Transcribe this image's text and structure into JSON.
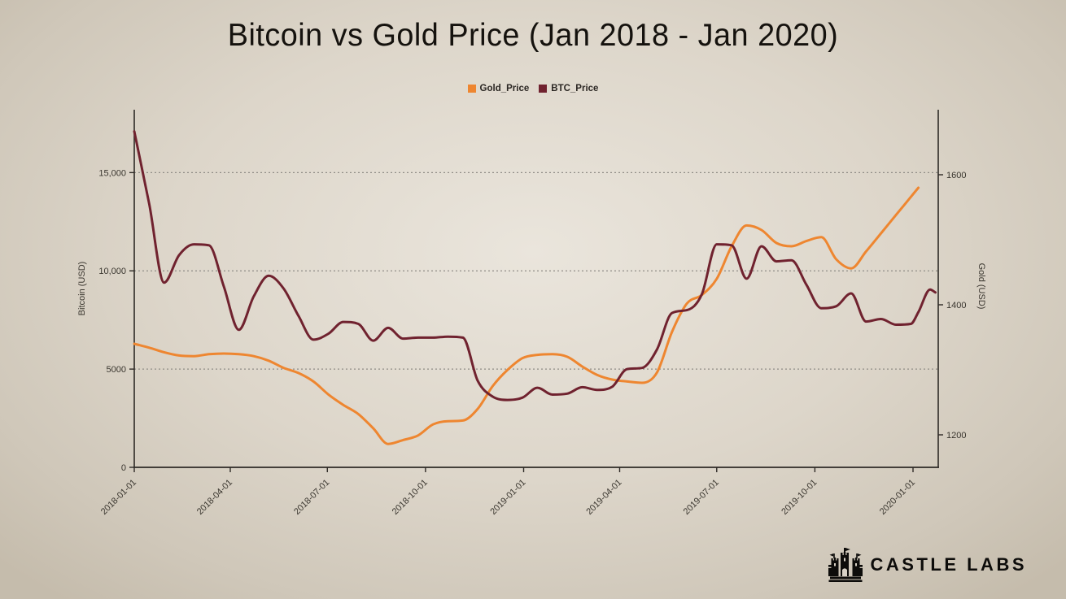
{
  "title": "Bitcoin vs Gold Price (Jan 2018 - Jan 2020)",
  "legend": {
    "items": [
      {
        "label": "Gold_Price",
        "color": "#ee8630"
      },
      {
        "label": "BTC_Price",
        "color": "#70222f"
      }
    ]
  },
  "watermark": {
    "text": "CASTLE LABS"
  },
  "chart_data": {
    "type": "line",
    "title": "Bitcoin vs Gold Price (Jan 2018 - Jan 2020)",
    "x_domain": [
      "2018-01-01",
      "2020-01-01"
    ],
    "x_tick_labels": [
      "2018-01-01",
      "2018-04-01",
      "2018-07-01",
      "2018-10-01",
      "2019-01-01",
      "2019-04-01",
      "2019-07-01",
      "2019-10-01",
      "2020-01-01"
    ],
    "left_axis": {
      "label": "Bitcoin (USD)",
      "range": [
        0,
        18200
      ],
      "ticks": [
        {
          "value": 0,
          "label": "0"
        },
        {
          "value": 5000,
          "label": "5000"
        },
        {
          "value": 10000,
          "label": "10,000"
        },
        {
          "value": 15000,
          "label": "15,000"
        }
      ],
      "gridlines_at": [
        5000,
        10000,
        15000
      ]
    },
    "right_axis": {
      "label": "Gold (USD)",
      "range": [
        1150,
        1700
      ],
      "ticks": [
        {
          "value": 1200,
          "label": "1200"
        },
        {
          "value": 1400,
          "label": "1400"
        },
        {
          "value": 1600,
          "label": "1600"
        }
      ]
    },
    "grid": {
      "style": "dashed",
      "color": "#8f8c86"
    },
    "dates": [
      "2018-01-01",
      "2018-01-15",
      "2018-01-29",
      "2018-02-12",
      "2018-02-26",
      "2018-03-12",
      "2018-03-26",
      "2018-04-09",
      "2018-04-23",
      "2018-05-07",
      "2018-05-21",
      "2018-06-04",
      "2018-06-18",
      "2018-07-02",
      "2018-07-16",
      "2018-07-30",
      "2018-08-13",
      "2018-08-27",
      "2018-09-10",
      "2018-09-24",
      "2018-10-08",
      "2018-10-22",
      "2018-11-05",
      "2018-11-19",
      "2018-12-03",
      "2018-12-17",
      "2018-12-31",
      "2019-01-14",
      "2019-01-28",
      "2019-02-11",
      "2019-02-25",
      "2019-03-11",
      "2019-03-25",
      "2019-04-08",
      "2019-04-22",
      "2019-05-06",
      "2019-05-20",
      "2019-06-03",
      "2019-06-17",
      "2019-07-01",
      "2019-07-15",
      "2019-07-29",
      "2019-08-12",
      "2019-08-26",
      "2019-09-09",
      "2019-09-23",
      "2019-10-07",
      "2019-10-21",
      "2019-11-04",
      "2019-11-18",
      "2019-12-02",
      "2019-12-16",
      "2019-12-30",
      "2020-01-06",
      "2020-01-17",
      "2020-01-22"
    ],
    "series": [
      {
        "name": "Gold_Price",
        "yaxis": "right",
        "color": "#ee8630",
        "values": [
          1340,
          1334,
          1327,
          1322,
          1321,
          1324,
          1325,
          1324,
          1321,
          1314,
          1303,
          1295,
          1282,
          1262,
          1246,
          1232,
          1210,
          1186,
          1192,
          1199,
          1216,
          1221,
          1222,
          1240,
          1275,
          1300,
          1318,
          1323,
          1324,
          1320,
          1305,
          1292,
          1285,
          1282,
          1280,
          1296,
          1358,
          1402,
          1415,
          1440,
          1490,
          1522,
          1515,
          1495,
          1490,
          1498,
          1504,
          1470,
          1456,
          1482,
          1510,
          1538,
          1566,
          1580,
          null,
          null
        ]
      },
      {
        "name": "BTC_Price",
        "yaxis": "left",
        "color": "#70222f",
        "values": [
          17100,
          13400,
          9400,
          10800,
          11350,
          11300,
          9200,
          7000,
          8700,
          9750,
          9100,
          7700,
          6500,
          6800,
          7400,
          7300,
          6450,
          7100,
          6550,
          6600,
          6600,
          6650,
          6600,
          4400,
          3600,
          3430,
          3550,
          4050,
          3700,
          3750,
          4080,
          3940,
          4100,
          5000,
          5060,
          6000,
          7850,
          8000,
          8800,
          11350,
          11300,
          9600,
          11250,
          10480,
          10540,
          9300,
          8100,
          8200,
          8850,
          7420,
          7550,
          7260,
          7300,
          7900,
          9050,
          8900
        ]
      }
    ]
  }
}
